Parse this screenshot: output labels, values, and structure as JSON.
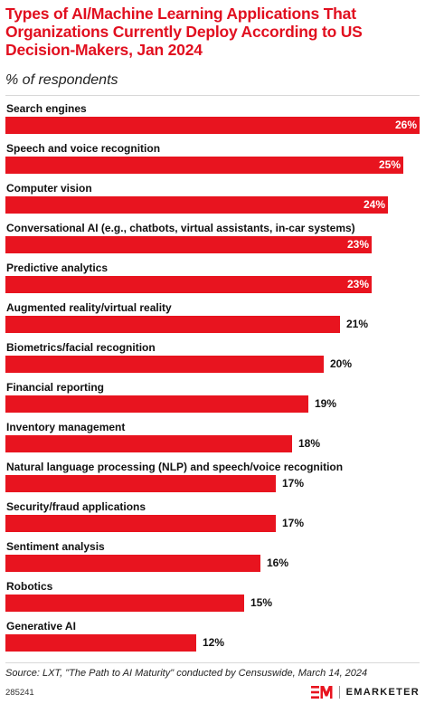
{
  "header": {
    "title": "Types of AI/Machine Learning Applications That Organizations Currently Deploy According to US Decision-Makers, Jan 2024",
    "subtitle": "% of respondents"
  },
  "chart_data": {
    "type": "bar",
    "orientation": "horizontal",
    "unit": "%",
    "xlim": [
      0,
      26
    ],
    "grid": false,
    "categories": [
      "Search engines",
      "Speech and voice recognition",
      "Computer vision",
      "Conversational AI (e.g., chatbots, virtual assistants, in-car systems)",
      "Predictive analytics",
      "Augmented reality/virtual reality",
      "Biometrics/facial recognition",
      "Financial reporting",
      "Inventory management",
      "Natural language processing (NLP) and speech/voice recognition",
      "Security/fraud applications",
      "Sentiment analysis",
      "Robotics",
      "Generative AI"
    ],
    "values": [
      26,
      25,
      24,
      23,
      23,
      21,
      20,
      19,
      18,
      17,
      17,
      16,
      15,
      12
    ],
    "value_labels": [
      "26%",
      "25%",
      "24%",
      "23%",
      "23%",
      "21%",
      "20%",
      "19%",
      "18%",
      "17%",
      "17%",
      "16%",
      "15%",
      "12%"
    ],
    "colors": {
      "bar": "#e8141f",
      "title": "#e10f1f"
    }
  },
  "footer": {
    "source": "Source: LXT, \"The Path to AI Maturity\" conducted by Censuswide, March 14, 2024",
    "chart_id": "285241",
    "brand_name": "EMARKETER",
    "brand_icon": "em-logo-icon"
  }
}
